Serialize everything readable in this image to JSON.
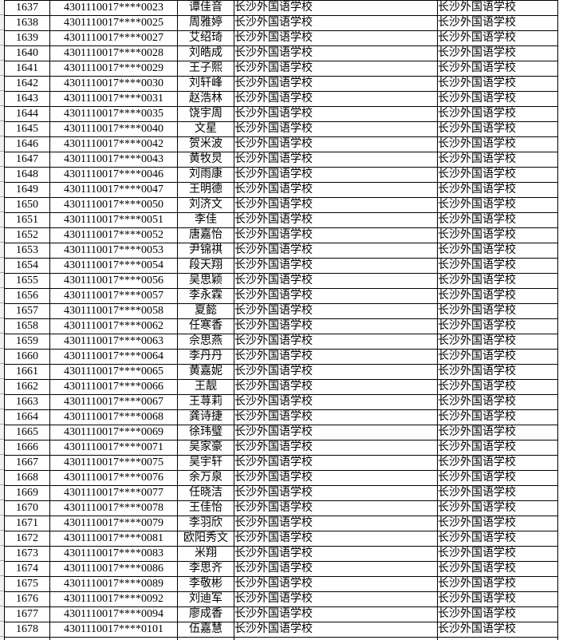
{
  "table": {
    "school_name": "长沙外国语学校",
    "rows": [
      {
        "seq": "1637",
        "id": "4301110017****0023",
        "name": "谭佳音",
        "school1": "长沙外国语学校",
        "school2": "长沙外国语学校"
      },
      {
        "seq": "1638",
        "id": "4301110017****0025",
        "name": "周雅婷",
        "school1": "长沙外国语学校",
        "school2": "长沙外国语学校"
      },
      {
        "seq": "1639",
        "id": "4301110017****0027",
        "name": "艾绍琦",
        "school1": "长沙外国语学校",
        "school2": "长沙外国语学校"
      },
      {
        "seq": "1640",
        "id": "4301110017****0028",
        "name": "刘皓成",
        "school1": "长沙外国语学校",
        "school2": "长沙外国语学校"
      },
      {
        "seq": "1641",
        "id": "4301110017****0029",
        "name": "王子熙",
        "school1": "长沙外国语学校",
        "school2": "长沙外国语学校"
      },
      {
        "seq": "1642",
        "id": "4301110017****0030",
        "name": "刘轩峰",
        "school1": "长沙外国语学校",
        "school2": "长沙外国语学校"
      },
      {
        "seq": "1643",
        "id": "4301110017****0031",
        "name": "赵浩林",
        "school1": "长沙外国语学校",
        "school2": "长沙外国语学校"
      },
      {
        "seq": "1644",
        "id": "4301110017****0035",
        "name": "饶宇周",
        "school1": "长沙外国语学校",
        "school2": "长沙外国语学校"
      },
      {
        "seq": "1645",
        "id": "4301110017****0040",
        "name": "文星",
        "school1": "长沙外国语学校",
        "school2": "长沙外国语学校"
      },
      {
        "seq": "1646",
        "id": "4301110017****0042",
        "name": "贺米波",
        "school1": "长沙外国语学校",
        "school2": "长沙外国语学校"
      },
      {
        "seq": "1647",
        "id": "4301110017****0043",
        "name": "黄牧炅",
        "school1": "长沙外国语学校",
        "school2": "长沙外国语学校"
      },
      {
        "seq": "1648",
        "id": "4301110017****0046",
        "name": "刘雨康",
        "school1": "长沙外国语学校",
        "school2": "长沙外国语学校"
      },
      {
        "seq": "1649",
        "id": "4301110017****0047",
        "name": "王明德",
        "school1": "长沙外国语学校",
        "school2": "长沙外国语学校"
      },
      {
        "seq": "1650",
        "id": "4301110017****0050",
        "name": "刘济文",
        "school1": "长沙外国语学校",
        "school2": "长沙外国语学校"
      },
      {
        "seq": "1651",
        "id": "4301110017****0051",
        "name": "李佳",
        "school1": "长沙外国语学校",
        "school2": "长沙外国语学校"
      },
      {
        "seq": "1652",
        "id": "4301110017****0052",
        "name": "唐嘉怡",
        "school1": "长沙外国语学校",
        "school2": "长沙外国语学校"
      },
      {
        "seq": "1653",
        "id": "4301110017****0053",
        "name": "尹锦祺",
        "school1": "长沙外国语学校",
        "school2": "长沙外国语学校"
      },
      {
        "seq": "1654",
        "id": "4301110017****0054",
        "name": "段天翔",
        "school1": "长沙外国语学校",
        "school2": "长沙外国语学校"
      },
      {
        "seq": "1655",
        "id": "4301110017****0056",
        "name": "吴思颖",
        "school1": "长沙外国语学校",
        "school2": "长沙外国语学校"
      },
      {
        "seq": "1656",
        "id": "4301110017****0057",
        "name": "李永霖",
        "school1": "长沙外国语学校",
        "school2": "长沙外国语学校"
      },
      {
        "seq": "1657",
        "id": "4301110017****0058",
        "name": "夏懿",
        "school1": "长沙外国语学校",
        "school2": "长沙外国语学校"
      },
      {
        "seq": "1658",
        "id": "4301110017****0062",
        "name": "任寒香",
        "school1": "长沙外国语学校",
        "school2": "长沙外国语学校"
      },
      {
        "seq": "1659",
        "id": "4301110017****0063",
        "name": "佘思燕",
        "school1": "长沙外国语学校",
        "school2": "长沙外国语学校"
      },
      {
        "seq": "1660",
        "id": "4301110017****0064",
        "name": "李丹丹",
        "school1": "长沙外国语学校",
        "school2": "长沙外国语学校"
      },
      {
        "seq": "1661",
        "id": "4301110017****0065",
        "name": "黄嘉妮",
        "school1": "长沙外国语学校",
        "school2": "长沙外国语学校"
      },
      {
        "seq": "1662",
        "id": "4301110017****0066",
        "name": "王靓",
        "school1": "长沙外国语学校",
        "school2": "长沙外国语学校"
      },
      {
        "seq": "1663",
        "id": "4301110017****0067",
        "name": "王荨莉",
        "school1": "长沙外国语学校",
        "school2": "长沙外国语学校"
      },
      {
        "seq": "1664",
        "id": "4301110017****0068",
        "name": "龚诗捷",
        "school1": "长沙外国语学校",
        "school2": "长沙外国语学校"
      },
      {
        "seq": "1665",
        "id": "4301110017****0069",
        "name": "徐玮璧",
        "school1": "长沙外国语学校",
        "school2": "长沙外国语学校"
      },
      {
        "seq": "1666",
        "id": "4301110017****0071",
        "name": "吴家豪",
        "school1": "长沙外国语学校",
        "school2": "长沙外国语学校"
      },
      {
        "seq": "1667",
        "id": "4301110017****0075",
        "name": "吴宇轩",
        "school1": "长沙外国语学校",
        "school2": "长沙外国语学校"
      },
      {
        "seq": "1668",
        "id": "4301110017****0076",
        "name": "余万泉",
        "school1": "长沙外国语学校",
        "school2": "长沙外国语学校"
      },
      {
        "seq": "1669",
        "id": "4301110017****0077",
        "name": "任晓洁",
        "school1": "长沙外国语学校",
        "school2": "长沙外国语学校"
      },
      {
        "seq": "1670",
        "id": "4301110017****0078",
        "name": "王佳怡",
        "school1": "长沙外国语学校",
        "school2": "长沙外国语学校"
      },
      {
        "seq": "1671",
        "id": "4301110017****0079",
        "name": "李羽欣",
        "school1": "长沙外国语学校",
        "school2": "长沙外国语学校"
      },
      {
        "seq": "1672",
        "id": "4301110017****0081",
        "name": "欧阳秀文",
        "school1": "长沙外国语学校",
        "school2": "长沙外国语学校"
      },
      {
        "seq": "1673",
        "id": "4301110017****0083",
        "name": "米翔",
        "school1": "长沙外国语学校",
        "school2": "长沙外国语学校"
      },
      {
        "seq": "1674",
        "id": "4301110017****0086",
        "name": "李思齐",
        "school1": "长沙外国语学校",
        "school2": "长沙外国语学校"
      },
      {
        "seq": "1675",
        "id": "4301110017****0089",
        "name": "李敬彬",
        "school1": "长沙外国语学校",
        "school2": "长沙外国语学校"
      },
      {
        "seq": "1676",
        "id": "4301110017****0092",
        "name": "刘迪军",
        "school1": "长沙外国语学校",
        "school2": "长沙外国语学校"
      },
      {
        "seq": "1677",
        "id": "4301110017****0094",
        "name": "廖成香",
        "school1": "长沙外国语学校",
        "school2": "长沙外国语学校"
      },
      {
        "seq": "1678",
        "id": "4301110017****0101",
        "name": "伍嘉慧",
        "school1": "长沙外国语学校",
        "school2": "长沙外国语学校"
      }
    ]
  }
}
